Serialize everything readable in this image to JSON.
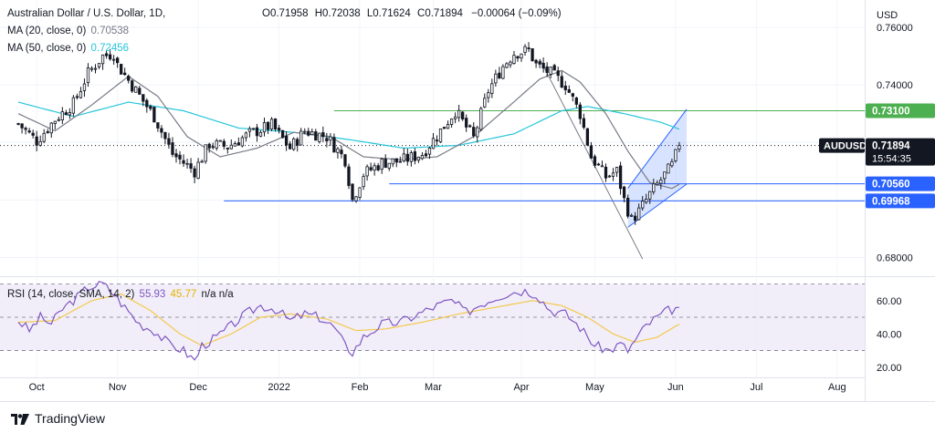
{
  "header": {
    "symbol_title": "Australian Dollar / U.S. Dollar, 1D,",
    "ohlc": {
      "open_label": "O",
      "open": "0.71958",
      "high_label": "H",
      "high": "0.72038",
      "low_label": "L",
      "low": "0.71624",
      "close_label": "C",
      "close": "0.71894",
      "change": "−0.00064 (−0.09%)"
    },
    "ma20": {
      "label": "MA (20, close, 0)",
      "value": "0.70538",
      "color": "#787b86"
    },
    "ma50": {
      "label": "MA (50, close, 0)",
      "value": "0.72456",
      "color": "#26c6da"
    }
  },
  "currency": "USD",
  "price_tag": {
    "symbol": "AUDUSD",
    "price": "0.71894",
    "countdown": "15:54:35"
  },
  "level_tags": [
    {
      "value": "0.73100",
      "price": 0.731,
      "color": "#4caf50"
    },
    {
      "value": "0.70560",
      "price": 0.7056,
      "color": "#2962ff"
    },
    {
      "value": "0.69968",
      "price": 0.69968,
      "color": "#2962ff"
    }
  ],
  "rsi_legend": {
    "label": "RSI (14, close, SMA, 14, 2)",
    "rsi": "55.93",
    "sma": "45.77",
    "na": "n/a n/a"
  },
  "branding": "TradingView",
  "colors": {
    "up": "#131722",
    "down": "#131722",
    "rsi": "#7e57c2",
    "rsi_sma": "#f2c94c",
    "band": "#ede7f6",
    "channel": "#2962ff"
  },
  "chart_data": [
    {
      "type": "candlestick",
      "title": "Australian Dollar / U.S. Dollar, 1D",
      "x_tick_labels": [
        "Oct",
        "Nov",
        "Dec",
        "2022",
        "Feb",
        "Mar",
        "Apr",
        "May",
        "Jun",
        "Jul",
        "Aug"
      ],
      "x_tick_days": [
        5,
        27,
        49,
        71,
        93,
        113,
        137,
        157,
        179,
        201,
        223
      ],
      "y_tick_labels": [
        "0.76000",
        "0.74000",
        "0.72000",
        "0.70000",
        "0.68000"
      ],
      "y_ticks": [
        0.76,
        0.74,
        0.72,
        0.7,
        0.68
      ],
      "ylim": [
        0.6735,
        0.7695
      ],
      "xlim": [
        -3,
        230
      ],
      "anchors_day_close": [
        [
          0,
          0.7265
        ],
        [
          5,
          0.7205
        ],
        [
          10,
          0.728
        ],
        [
          15,
          0.7335
        ],
        [
          19,
          0.744
        ],
        [
          23,
          0.75
        ],
        [
          26,
          0.751
        ],
        [
          27,
          0.747
        ],
        [
          32,
          0.738
        ],
        [
          37,
          0.729
        ],
        [
          42,
          0.716
        ],
        [
          48,
          0.71
        ],
        [
          52,
          0.7195
        ],
        [
          57,
          0.7185
        ],
        [
          63,
          0.723
        ],
        [
          69,
          0.726
        ],
        [
          74,
          0.718
        ],
        [
          78,
          0.724
        ],
        [
          84,
          0.722
        ],
        [
          89,
          0.714
        ],
        [
          91,
          0.7
        ],
        [
          94,
          0.709
        ],
        [
          99,
          0.713
        ],
        [
          104,
          0.7135
        ],
        [
          110,
          0.716
        ],
        [
          115,
          0.724
        ],
        [
          119,
          0.731
        ],
        [
          124,
          0.7215
        ],
        [
          128,
          0.738
        ],
        [
          132,
          0.7465
        ],
        [
          135,
          0.751
        ],
        [
          139,
          0.752
        ],
        [
          141,
          0.747
        ],
        [
          145,
          0.744
        ],
        [
          149,
          0.74
        ],
        [
          153,
          0.73
        ],
        [
          156,
          0.715
        ],
        [
          160,
          0.708
        ],
        [
          163,
          0.71
        ],
        [
          165,
          0.7
        ],
        [
          167,
          0.693
        ],
        [
          169,
          0.696
        ],
        [
          172,
          0.702
        ],
        [
          175,
          0.707
        ],
        [
          178,
          0.712
        ],
        [
          180,
          0.719
        ]
      ],
      "ma20_day_value": [
        [
          0,
          0.73
        ],
        [
          10,
          0.724
        ],
        [
          20,
          0.733
        ],
        [
          30,
          0.743
        ],
        [
          38,
          0.736
        ],
        [
          46,
          0.722
        ],
        [
          55,
          0.715
        ],
        [
          65,
          0.718
        ],
        [
          75,
          0.7235
        ],
        [
          85,
          0.722
        ],
        [
          94,
          0.715
        ],
        [
          104,
          0.714
        ],
        [
          114,
          0.715
        ],
        [
          124,
          0.722
        ],
        [
          134,
          0.733
        ],
        [
          142,
          0.742
        ],
        [
          148,
          0.745
        ],
        [
          153,
          0.741
        ],
        [
          160,
          0.73
        ],
        [
          166,
          0.717
        ],
        [
          172,
          0.706
        ],
        [
          178,
          0.704
        ],
        [
          180,
          0.7054
        ]
      ],
      "ma50_day_value": [
        [
          0,
          0.734
        ],
        [
          15,
          0.729
        ],
        [
          30,
          0.734
        ],
        [
          45,
          0.731
        ],
        [
          60,
          0.725
        ],
        [
          75,
          0.7235
        ],
        [
          90,
          0.721
        ],
        [
          105,
          0.718
        ],
        [
          120,
          0.719
        ],
        [
          135,
          0.723
        ],
        [
          148,
          0.731
        ],
        [
          155,
          0.7325
        ],
        [
          165,
          0.73
        ],
        [
          175,
          0.727
        ],
        [
          180,
          0.7246
        ]
      ],
      "horizontal_levels": [
        {
          "price": 0.731,
          "start_day": 86,
          "color": "#4caf50"
        },
        {
          "price": 0.7056,
          "start_day": 101,
          "color": "#2962ff"
        },
        {
          "price": 0.69968,
          "start_day": 56,
          "color": "#2962ff"
        }
      ],
      "trend_line": {
        "from": [
          142,
          0.749
        ],
        "to": [
          170,
          0.6795
        ]
      },
      "ascending_channel": {
        "lower": [
          [
            166,
            0.6905
          ],
          [
            182,
            0.7055
          ]
        ],
        "upper": [
          [
            166,
            0.704
          ],
          [
            182,
            0.7315
          ]
        ]
      },
      "last_close": 0.71894
    },
    {
      "type": "line",
      "title": "RSI (14, close, SMA, 14, 2)",
      "y_tick_labels": [
        "60.00",
        "40.00",
        "20.00"
      ],
      "y_ticks": [
        60,
        40,
        20
      ],
      "ylim": [
        15,
        73
      ],
      "bands": [
        30,
        50,
        70
      ],
      "rsi_anchors": [
        [
          0,
          48
        ],
        [
          3,
          42
        ],
        [
          6,
          50
        ],
        [
          9,
          46
        ],
        [
          12,
          55
        ],
        [
          16,
          62
        ],
        [
          19,
          68
        ],
        [
          23,
          70
        ],
        [
          26,
          64
        ],
        [
          29,
          56
        ],
        [
          33,
          46
        ],
        [
          37,
          42
        ],
        [
          41,
          34
        ],
        [
          45,
          30
        ],
        [
          48,
          24
        ],
        [
          50,
          33
        ],
        [
          54,
          38
        ],
        [
          58,
          45
        ],
        [
          62,
          52
        ],
        [
          66,
          57
        ],
        [
          70,
          55
        ],
        [
          74,
          48
        ],
        [
          78,
          52
        ],
        [
          82,
          50
        ],
        [
          86,
          44
        ],
        [
          89,
          33
        ],
        [
          91,
          29
        ],
        [
          94,
          38
        ],
        [
          99,
          46
        ],
        [
          104,
          47
        ],
        [
          109,
          52
        ],
        [
          114,
          57
        ],
        [
          118,
          60
        ],
        [
          122,
          53
        ],
        [
          126,
          58
        ],
        [
          130,
          62
        ],
        [
          134,
          65
        ],
        [
          138,
          66
        ],
        [
          141,
          64
        ],
        [
          145,
          54
        ],
        [
          149,
          52
        ],
        [
          153,
          44
        ],
        [
          157,
          33
        ],
        [
          161,
          30
        ],
        [
          164,
          34
        ],
        [
          166,
          30
        ],
        [
          168,
          36
        ],
        [
          171,
          45
        ],
        [
          174,
          50
        ],
        [
          177,
          54
        ],
        [
          180,
          56
        ]
      ],
      "sma_anchors": [
        [
          0,
          47
        ],
        [
          10,
          48
        ],
        [
          20,
          60
        ],
        [
          28,
          64
        ],
        [
          36,
          54
        ],
        [
          44,
          40
        ],
        [
          50,
          33
        ],
        [
          58,
          40
        ],
        [
          66,
          50
        ],
        [
          74,
          52
        ],
        [
          84,
          49
        ],
        [
          92,
          42
        ],
        [
          100,
          43
        ],
        [
          110,
          47
        ],
        [
          120,
          52
        ],
        [
          130,
          56
        ],
        [
          140,
          60
        ],
        [
          148,
          57
        ],
        [
          155,
          50
        ],
        [
          162,
          40
        ],
        [
          168,
          35
        ],
        [
          174,
          38
        ],
        [
          180,
          46
        ]
      ],
      "last_rsi": 55.93,
      "last_sma": 45.77
    }
  ]
}
